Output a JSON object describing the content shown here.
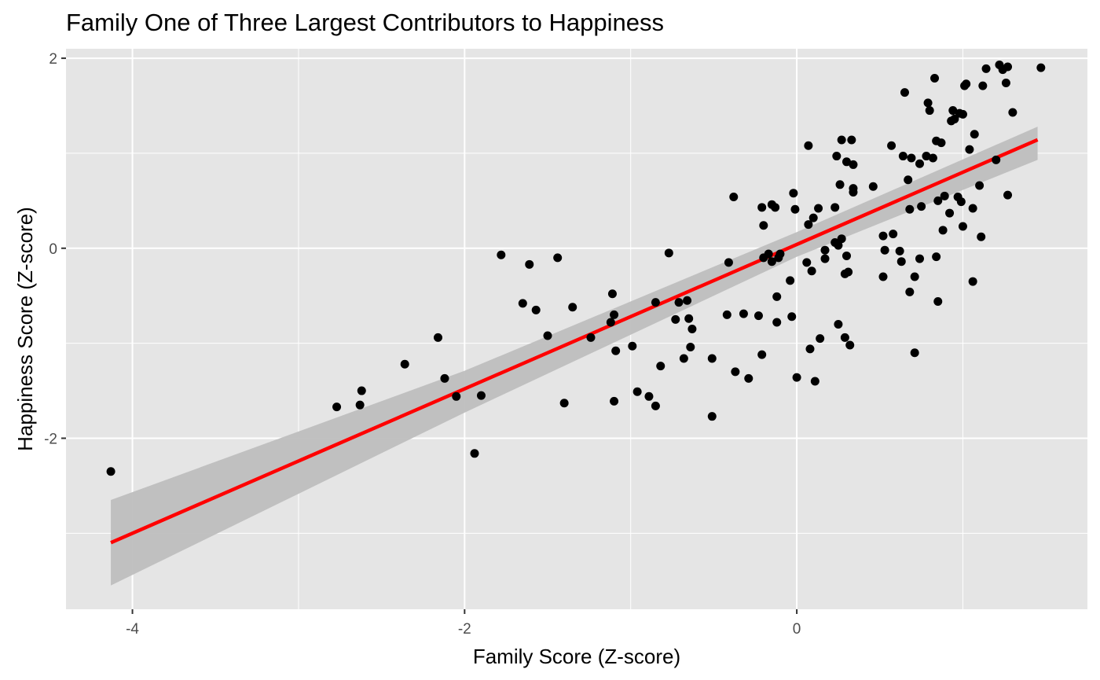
{
  "chart_data": {
    "type": "scatter",
    "title": "Family One of Three Largest Contributors to Happiness",
    "xlabel": "Family Score (Z-score)",
    "ylabel": "Happiness Score (Z-score)",
    "xlim": [
      -4.4,
      1.75
    ],
    "ylim": [
      -3.8,
      2.1
    ],
    "x_ticks": [
      -4,
      -2,
      0
    ],
    "y_ticks": [
      -2,
      0,
      2
    ],
    "x_tick_labels": [
      "-4",
      "-2",
      "0"
    ],
    "y_tick_labels": [
      "-2",
      "0",
      "2"
    ],
    "grid": true,
    "panel_background": "#e5e5e5",
    "point_color": "#000000",
    "fit_line_color": "#ff0000",
    "ribbon_color": "#bebebe",
    "fit": {
      "type": "linear",
      "x_range": [
        -4.13,
        1.45
      ],
      "intercept": 0.04,
      "slope": 0.76,
      "ci_band": [
        {
          "x": -4.13,
          "lower": -3.55,
          "upper": -2.65
        },
        {
          "x": -2.0,
          "lower": -1.73,
          "upper": -1.29
        },
        {
          "x": 0.0,
          "lower": -0.09,
          "upper": 0.17
        },
        {
          "x": 1.45,
          "lower": 0.93,
          "upper": 1.28
        }
      ]
    },
    "points": [
      {
        "x": -4.13,
        "y": -2.35
      },
      {
        "x": -2.77,
        "y": -1.67
      },
      {
        "x": -2.63,
        "y": -1.65
      },
      {
        "x": -2.62,
        "y": -1.5
      },
      {
        "x": -2.36,
        "y": -1.22
      },
      {
        "x": -2.16,
        "y": -0.94
      },
      {
        "x": -2.12,
        "y": -1.37
      },
      {
        "x": -2.05,
        "y": -1.56
      },
      {
        "x": -1.94,
        "y": -2.16
      },
      {
        "x": -1.9,
        "y": -1.55
      },
      {
        "x": -1.78,
        "y": -0.07
      },
      {
        "x": -1.65,
        "y": -0.58
      },
      {
        "x": -1.61,
        "y": -0.17
      },
      {
        "x": -1.57,
        "y": -0.65
      },
      {
        "x": -1.5,
        "y": -0.92
      },
      {
        "x": -1.44,
        "y": -0.1
      },
      {
        "x": -1.4,
        "y": -1.63
      },
      {
        "x": -1.35,
        "y": -0.62
      },
      {
        "x": -1.24,
        "y": -0.94
      },
      {
        "x": -1.12,
        "y": -0.78
      },
      {
        "x": -1.11,
        "y": -0.48
      },
      {
        "x": -1.1,
        "y": -0.7
      },
      {
        "x": -1.09,
        "y": -1.08
      },
      {
        "x": -1.1,
        "y": -1.61
      },
      {
        "x": -0.99,
        "y": -1.03
      },
      {
        "x": -0.96,
        "y": -1.51
      },
      {
        "x": -0.89,
        "y": -1.56
      },
      {
        "x": -0.85,
        "y": -1.66
      },
      {
        "x": -0.85,
        "y": -0.57
      },
      {
        "x": -0.82,
        "y": -1.24
      },
      {
        "x": -0.77,
        "y": -0.05
      },
      {
        "x": -0.73,
        "y": -0.75
      },
      {
        "x": -0.71,
        "y": -0.57
      },
      {
        "x": -0.68,
        "y": -1.16
      },
      {
        "x": -0.66,
        "y": -0.55
      },
      {
        "x": -0.65,
        "y": -0.74
      },
      {
        "x": -0.64,
        "y": -1.04
      },
      {
        "x": -0.63,
        "y": -0.85
      },
      {
        "x": -0.51,
        "y": -1.77
      },
      {
        "x": -0.51,
        "y": -1.16
      },
      {
        "x": -0.42,
        "y": -0.7
      },
      {
        "x": -0.41,
        "y": -0.15
      },
      {
        "x": -0.38,
        "y": 0.54
      },
      {
        "x": -0.37,
        "y": -1.3
      },
      {
        "x": -0.32,
        "y": -0.69
      },
      {
        "x": -0.29,
        "y": -1.37
      },
      {
        "x": -0.23,
        "y": -0.71
      },
      {
        "x": -0.21,
        "y": 0.43
      },
      {
        "x": -0.21,
        "y": -1.12
      },
      {
        "x": -0.2,
        "y": 0.24
      },
      {
        "x": -0.2,
        "y": -0.1
      },
      {
        "x": -0.17,
        "y": -0.06
      },
      {
        "x": -0.15,
        "y": -0.14
      },
      {
        "x": -0.15,
        "y": 0.46
      },
      {
        "x": -0.13,
        "y": 0.43
      },
      {
        "x": -0.12,
        "y": -0.51
      },
      {
        "x": -0.12,
        "y": -0.78
      },
      {
        "x": -0.11,
        "y": -0.1
      },
      {
        "x": -0.1,
        "y": -0.06
      },
      {
        "x": -0.04,
        "y": -0.34
      },
      {
        "x": -0.03,
        "y": -0.72
      },
      {
        "x": -0.02,
        "y": 0.58
      },
      {
        "x": -0.01,
        "y": 0.41
      },
      {
        "x": 0.0,
        "y": -1.36
      },
      {
        "x": 0.06,
        "y": -0.15
      },
      {
        "x": 0.07,
        "y": 1.08
      },
      {
        "x": 0.07,
        "y": 0.25
      },
      {
        "x": 0.08,
        "y": -1.06
      },
      {
        "x": 0.09,
        "y": -0.24
      },
      {
        "x": 0.1,
        "y": 0.32
      },
      {
        "x": 0.11,
        "y": -1.4
      },
      {
        "x": 0.13,
        "y": 0.42
      },
      {
        "x": 0.14,
        "y": -0.95
      },
      {
        "x": 0.17,
        "y": -0.02
      },
      {
        "x": 0.17,
        "y": -0.11
      },
      {
        "x": 0.23,
        "y": 0.43
      },
      {
        "x": 0.23,
        "y": 0.06
      },
      {
        "x": 0.24,
        "y": 0.97
      },
      {
        "x": 0.25,
        "y": 0.03
      },
      {
        "x": 0.25,
        "y": -0.8
      },
      {
        "x": 0.26,
        "y": 0.67
      },
      {
        "x": 0.27,
        "y": 0.1
      },
      {
        "x": 0.27,
        "y": 1.14
      },
      {
        "x": 0.29,
        "y": -0.27
      },
      {
        "x": 0.29,
        "y": -0.94
      },
      {
        "x": 0.3,
        "y": 0.91
      },
      {
        "x": 0.3,
        "y": -0.08
      },
      {
        "x": 0.31,
        "y": -0.25
      },
      {
        "x": 0.32,
        "y": -1.02
      },
      {
        "x": 0.33,
        "y": 1.14
      },
      {
        "x": 0.34,
        "y": 0.88
      },
      {
        "x": 0.34,
        "y": 0.63
      },
      {
        "x": 0.34,
        "y": 0.59
      },
      {
        "x": 0.46,
        "y": 0.65
      },
      {
        "x": 0.52,
        "y": 0.13
      },
      {
        "x": 0.52,
        "y": -0.3
      },
      {
        "x": 0.53,
        "y": -0.02
      },
      {
        "x": 0.57,
        "y": 1.08
      },
      {
        "x": 0.58,
        "y": 0.15
      },
      {
        "x": 0.62,
        "y": -0.03
      },
      {
        "x": 0.63,
        "y": -0.14
      },
      {
        "x": 0.64,
        "y": 0.97
      },
      {
        "x": 0.65,
        "y": 1.64
      },
      {
        "x": 0.67,
        "y": 0.72
      },
      {
        "x": 0.68,
        "y": 0.41
      },
      {
        "x": 0.68,
        "y": -0.46
      },
      {
        "x": 0.69,
        "y": 0.95
      },
      {
        "x": 0.71,
        "y": -0.3
      },
      {
        "x": 0.71,
        "y": -1.1
      },
      {
        "x": 0.74,
        "y": 0.89
      },
      {
        "x": 0.74,
        "y": -0.11
      },
      {
        "x": 0.75,
        "y": 0.44
      },
      {
        "x": 0.78,
        "y": 0.97
      },
      {
        "x": 0.79,
        "y": 1.53
      },
      {
        "x": 0.8,
        "y": 1.45
      },
      {
        "x": 0.82,
        "y": 0.95
      },
      {
        "x": 0.83,
        "y": 1.79
      },
      {
        "x": 0.84,
        "y": 1.13
      },
      {
        "x": 0.84,
        "y": -0.09
      },
      {
        "x": 0.85,
        "y": 0.5
      },
      {
        "x": 0.85,
        "y": -0.56
      },
      {
        "x": 0.87,
        "y": 1.11
      },
      {
        "x": 0.88,
        "y": 0.19
      },
      {
        "x": 0.89,
        "y": 0.55
      },
      {
        "x": 0.92,
        "y": 0.37
      },
      {
        "x": 0.93,
        "y": 1.34
      },
      {
        "x": 0.94,
        "y": 1.45
      },
      {
        "x": 0.95,
        "y": 1.36
      },
      {
        "x": 0.97,
        "y": 0.54
      },
      {
        "x": 0.98,
        "y": 1.42
      },
      {
        "x": 0.99,
        "y": 0.49
      },
      {
        "x": 1.0,
        "y": 1.41
      },
      {
        "x": 1.0,
        "y": 0.23
      },
      {
        "x": 1.01,
        "y": 1.71
      },
      {
        "x": 1.02,
        "y": 1.73
      },
      {
        "x": 1.04,
        "y": 1.04
      },
      {
        "x": 1.06,
        "y": 0.42
      },
      {
        "x": 1.06,
        "y": -0.35
      },
      {
        "x": 1.07,
        "y": 1.2
      },
      {
        "x": 1.1,
        "y": 0.66
      },
      {
        "x": 1.11,
        "y": 0.12
      },
      {
        "x": 1.12,
        "y": 1.71
      },
      {
        "x": 1.14,
        "y": 1.89
      },
      {
        "x": 1.2,
        "y": 0.93
      },
      {
        "x": 1.22,
        "y": 1.93
      },
      {
        "x": 1.24,
        "y": 1.88
      },
      {
        "x": 1.26,
        "y": 1.74
      },
      {
        "x": 1.27,
        "y": 1.91
      },
      {
        "x": 1.27,
        "y": 0.56
      },
      {
        "x": 1.3,
        "y": 1.43
      },
      {
        "x": 1.47,
        "y": 1.9
      }
    ]
  }
}
